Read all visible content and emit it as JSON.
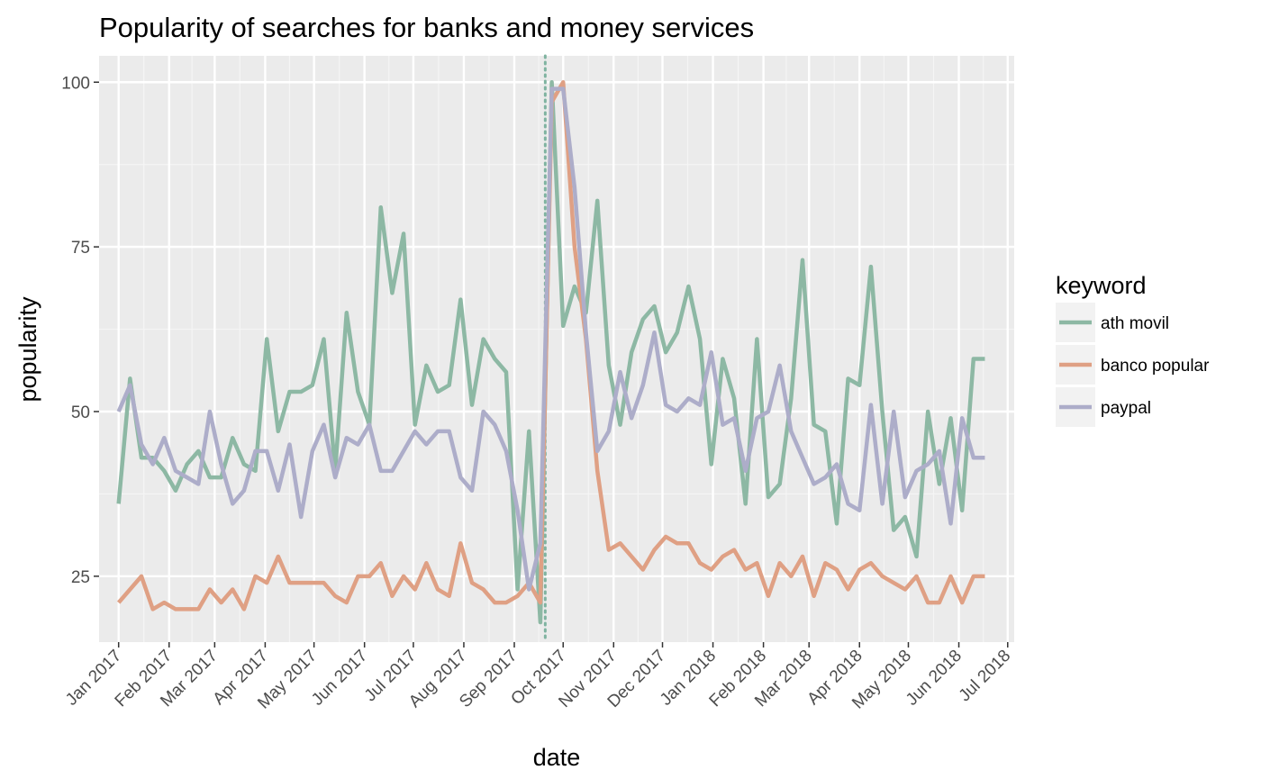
{
  "chart_data": {
    "type": "line",
    "title": "Popularity of searches for banks and money services",
    "xlabel": "date",
    "ylabel": "popularity",
    "ylim": [
      15,
      104
    ],
    "xlim": [
      "2016-12-20",
      "2018-07-05"
    ],
    "grid": true,
    "legend": {
      "title": "keyword",
      "position": "right"
    },
    "y_ticks": [
      25,
      50,
      75,
      100
    ],
    "x_ticks": [
      {
        "date": "2017-01-01",
        "label": "Jan 2017"
      },
      {
        "date": "2017-02-01",
        "label": "Feb 2017"
      },
      {
        "date": "2017-03-01",
        "label": "Mar 2017"
      },
      {
        "date": "2017-04-01",
        "label": "Apr 2017"
      },
      {
        "date": "2017-05-01",
        "label": "May 2017"
      },
      {
        "date": "2017-06-01",
        "label": "Jun 2017"
      },
      {
        "date": "2017-07-01",
        "label": "Jul 2017"
      },
      {
        "date": "2017-08-01",
        "label": "Aug 2017"
      },
      {
        "date": "2017-09-01",
        "label": "Sep 2017"
      },
      {
        "date": "2017-10-01",
        "label": "Oct 2017"
      },
      {
        "date": "2017-11-01",
        "label": "Nov 2017"
      },
      {
        "date": "2017-12-01",
        "label": "Dec 2017"
      },
      {
        "date": "2018-01-01",
        "label": "Jan 2018"
      },
      {
        "date": "2018-02-01",
        "label": "Feb 2018"
      },
      {
        "date": "2018-03-01",
        "label": "Mar 2018"
      },
      {
        "date": "2018-04-01",
        "label": "Apr 2018"
      },
      {
        "date": "2018-05-01",
        "label": "May 2018"
      },
      {
        "date": "2018-06-01",
        "label": "Jun 2018"
      },
      {
        "date": "2018-07-01",
        "label": "Jul 2018"
      }
    ],
    "vline": {
      "date": "2017-09-20",
      "color": "#7fb3a0"
    },
    "x": [
      "2017-01-01",
      "2017-01-08",
      "2017-01-15",
      "2017-01-22",
      "2017-01-29",
      "2017-02-05",
      "2017-02-12",
      "2017-02-19",
      "2017-02-26",
      "2017-03-05",
      "2017-03-12",
      "2017-03-19",
      "2017-03-26",
      "2017-04-02",
      "2017-04-09",
      "2017-04-16",
      "2017-04-23",
      "2017-04-30",
      "2017-05-07",
      "2017-05-14",
      "2017-05-21",
      "2017-05-28",
      "2017-06-04",
      "2017-06-11",
      "2017-06-18",
      "2017-06-25",
      "2017-07-02",
      "2017-07-09",
      "2017-07-16",
      "2017-07-23",
      "2017-07-30",
      "2017-08-06",
      "2017-08-13",
      "2017-08-20",
      "2017-08-27",
      "2017-09-03",
      "2017-09-10",
      "2017-09-17",
      "2017-09-24",
      "2017-10-01",
      "2017-10-08",
      "2017-10-15",
      "2017-10-22",
      "2017-10-29",
      "2017-11-05",
      "2017-11-12",
      "2017-11-19",
      "2017-11-26",
      "2017-12-03",
      "2017-12-10",
      "2017-12-17",
      "2017-12-24",
      "2017-12-31",
      "2018-01-07",
      "2018-01-14",
      "2018-01-21",
      "2018-01-28",
      "2018-02-04",
      "2018-02-11",
      "2018-02-18",
      "2018-02-25",
      "2018-03-04",
      "2018-03-11",
      "2018-03-18",
      "2018-03-25",
      "2018-04-01",
      "2018-04-08",
      "2018-04-15",
      "2018-04-22",
      "2018-04-29",
      "2018-05-06",
      "2018-05-13",
      "2018-05-20",
      "2018-05-27",
      "2018-06-03",
      "2018-06-10",
      "2018-06-17"
    ],
    "series": [
      {
        "name": "ath movil",
        "color": "#8db8a4",
        "values": [
          36,
          55,
          43,
          43,
          41,
          38,
          42,
          44,
          40,
          40,
          46,
          42,
          41,
          61,
          47,
          53,
          53,
          54,
          61,
          41,
          65,
          53,
          48,
          81,
          68,
          77,
          48,
          57,
          53,
          54,
          67,
          51,
          61,
          58,
          56,
          23,
          47,
          18,
          100,
          63,
          69,
          65,
          82,
          57,
          48,
          59,
          64,
          66,
          59,
          62,
          69,
          61,
          42,
          58,
          52,
          36,
          61,
          37,
          39,
          52,
          73,
          48,
          47,
          33,
          55,
          54,
          72,
          50,
          32,
          34,
          28,
          50,
          39,
          49,
          35,
          58,
          58
        ]
      },
      {
        "name": "banco popular",
        "color": "#dfa084",
        "values": [
          21,
          23,
          25,
          20,
          21,
          20,
          20,
          20,
          23,
          21,
          23,
          20,
          25,
          24,
          28,
          24,
          24,
          24,
          24,
          22,
          21,
          25,
          25,
          27,
          22,
          25,
          23,
          27,
          23,
          22,
          30,
          24,
          23,
          21,
          21,
          22,
          24,
          21,
          97,
          100,
          75,
          61,
          41,
          29,
          30,
          28,
          26,
          29,
          31,
          30,
          30,
          27,
          26,
          28,
          29,
          26,
          27,
          22,
          27,
          25,
          28,
          22,
          27,
          26,
          23,
          26,
          27,
          25,
          24,
          23,
          25,
          21,
          21,
          25,
          21,
          25,
          25
        ]
      },
      {
        "name": "paypal",
        "color": "#adadc9",
        "values": [
          50,
          54,
          45,
          42,
          46,
          41,
          40,
          39,
          50,
          42,
          36,
          38,
          44,
          44,
          38,
          45,
          34,
          44,
          48,
          40,
          46,
          45,
          48,
          41,
          41,
          44,
          47,
          45,
          47,
          47,
          40,
          38,
          50,
          48,
          44,
          35,
          23,
          30,
          99,
          99,
          84,
          62,
          44,
          47,
          56,
          49,
          54,
          62,
          51,
          50,
          52,
          51,
          59,
          48,
          49,
          41,
          49,
          50,
          57,
          47,
          43,
          39,
          40,
          42,
          36,
          35,
          51,
          36,
          50,
          37,
          41,
          42,
          44,
          33,
          49,
          43,
          43
        ]
      }
    ]
  }
}
